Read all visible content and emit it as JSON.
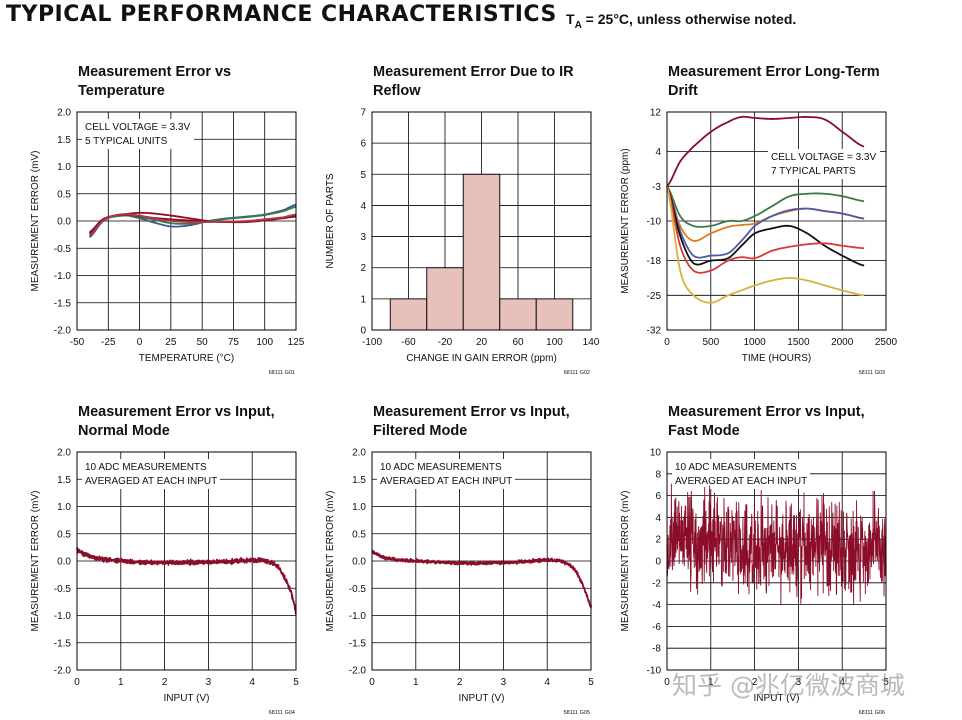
{
  "header": {
    "title": "TYPICAL PERFORMANCE CHARACTERISTICS",
    "cond_prefix": "T",
    "cond_sub": "A",
    "cond_rest": " = 25°C, unless otherwise noted."
  },
  "watermark": "知乎 @兆亿微波商城",
  "colors": {
    "grid": "#000000",
    "bar_fill": "#e7c0bb",
    "curve_main": "#8b0d2a",
    "noise": "#8b0d2a"
  },
  "chart_data": [
    {
      "type": "line",
      "title": "Measurement Error vs Temperature",
      "xlabel": "TEMPERATURE (°C)",
      "ylabel": "MEASUREMENT ERROR (mV)",
      "xlim": [
        -50,
        125
      ],
      "ylim": [
        -2.0,
        2.0
      ],
      "xticks": [
        -50,
        -25,
        0,
        25,
        50,
        75,
        100,
        125
      ],
      "yticks": [
        -2.0,
        -1.5,
        -1.0,
        -0.5,
        0,
        0.5,
        1.0,
        1.5,
        2.0
      ],
      "tick_decimals": 1,
      "grid": true,
      "annotation": [
        "CELL VOLTAGE = 3.3V",
        "5 TYPICAL UNITS"
      ],
      "figure_id": "68111 G01",
      "series": [
        {
          "color": "#8b0d2a",
          "x": [
            -40,
            -30,
            -20,
            -10,
            0,
            10,
            25,
            40,
            55,
            70,
            85,
            100,
            115,
            125
          ],
          "y": [
            -0.25,
            0,
            0.1,
            0.13,
            0.15,
            0.14,
            0.1,
            0.05,
            0,
            -0.02,
            -0.01,
            0.03,
            0.06,
            0.1
          ]
        },
        {
          "color": "#3a5a95",
          "x": [
            -40,
            -30,
            -20,
            -10,
            0,
            10,
            25,
            40,
            55,
            70,
            85,
            100,
            115,
            125
          ],
          "y": [
            -0.3,
            -0.02,
            0.09,
            0.1,
            0.05,
            -0.02,
            -0.1,
            -0.08,
            0,
            0.05,
            0.08,
            0.12,
            0.2,
            0.3
          ]
        },
        {
          "color": "#3a7a4a",
          "x": [
            -40,
            -30,
            -20,
            -10,
            0,
            10,
            25,
            40,
            55,
            70,
            85,
            100,
            115,
            125
          ],
          "y": [
            -0.2,
            0.02,
            0.08,
            0.1,
            0.07,
            0.03,
            -0.04,
            -0.05,
            0,
            0.04,
            0.07,
            0.11,
            0.18,
            0.26
          ]
        },
        {
          "color": "#8b0d2a",
          "x": [
            -40,
            -30,
            -20,
            -10,
            0,
            10,
            25,
            40,
            55,
            70,
            85,
            100,
            115,
            125
          ],
          "y": [
            -0.22,
            0.02,
            0.1,
            0.11,
            0.09,
            0.06,
            0.03,
            0.01,
            -0.01,
            -0.02,
            -0.02,
            0.01,
            0.05,
            0.08
          ]
        },
        {
          "color": "#b23a4a",
          "x": [
            -40,
            -30,
            -20,
            -10,
            0,
            10,
            25,
            40,
            55,
            70,
            85,
            100,
            115,
            125
          ],
          "y": [
            -0.27,
            -0.01,
            0.1,
            0.12,
            0.1,
            0.05,
            0,
            -0.02,
            -0.02,
            -0.01,
            0,
            0.03,
            0.07,
            0.12
          ]
        }
      ]
    },
    {
      "type": "bar",
      "title": "Measurement Error Due to IR Reflow",
      "xlabel": "CHANGE IN GAIN ERROR (ppm)",
      "ylabel": "NUMBER OF PARTS",
      "xlim": [
        -100,
        140
      ],
      "ylim": [
        0,
        7
      ],
      "xticks": [
        -100,
        -60,
        -20,
        20,
        60,
        100,
        140
      ],
      "yticks": [
        0,
        1,
        2,
        3,
        4,
        5,
        6,
        7
      ],
      "tick_decimals": 0,
      "grid": true,
      "figure_id": "68111 G02",
      "bins": [
        {
          "from": -80,
          "to": -40,
          "count": 1
        },
        {
          "from": -40,
          "to": 0,
          "count": 2
        },
        {
          "from": 0,
          "to": 40,
          "count": 5
        },
        {
          "from": 40,
          "to": 80,
          "count": 1
        },
        {
          "from": 80,
          "to": 120,
          "count": 1
        }
      ]
    },
    {
      "type": "line",
      "title": "Measurement Error Long-Term Drift",
      "xlabel": "TIME (HOURS)",
      "ylabel": "MEASUREMENT ERROR (ppm)",
      "xlim": [
        0,
        2500
      ],
      "ylim": [
        -32,
        12
      ],
      "xticks": [
        0,
        500,
        1000,
        1500,
        2000,
        2500
      ],
      "yticks": [
        -32,
        -25,
        -18,
        -10,
        -3,
        4,
        12
      ],
      "tick_decimals": 0,
      "grid": true,
      "annotation": [
        "CELL VOLTAGE = 3.3V",
        "7 TYPICAL PARTS"
      ],
      "figure_id": "58111 G03",
      "series": [
        {
          "color": "#8b0d2a",
          "x": [
            0,
            150,
            300,
            500,
            700,
            850,
            1000,
            1200,
            1400,
            1600,
            1800,
            2000,
            2250
          ],
          "y": [
            -3,
            2,
            5,
            8,
            10,
            11,
            10.8,
            10.6,
            10.8,
            11,
            10.5,
            8,
            5
          ]
        },
        {
          "color": "#3a7a4a",
          "x": [
            0,
            150,
            300,
            500,
            700,
            850,
            1000,
            1200,
            1400,
            1600,
            1800,
            2000,
            2250
          ],
          "y": [
            -3,
            -9,
            -11,
            -11,
            -10,
            -10,
            -9,
            -7,
            -5,
            -4.5,
            -4.5,
            -5,
            -6
          ]
        },
        {
          "color": "#e07b1a",
          "x": [
            0,
            150,
            300,
            500,
            700,
            850,
            1000,
            1200,
            1400,
            1600,
            1800,
            2000,
            2250
          ],
          "y": [
            -3,
            -11,
            -14,
            -12.5,
            -11.2,
            -10.8,
            -10.5,
            -9,
            -8,
            -7.5,
            -8,
            -8.5,
            -9.5
          ]
        },
        {
          "color": "#4a5aa8",
          "x": [
            0,
            150,
            300,
            500,
            700,
            850,
            1000,
            1200,
            1400,
            1600,
            1800,
            2000,
            2250
          ],
          "y": [
            -3,
            -12,
            -17,
            -17,
            -16.5,
            -14,
            -11,
            -9,
            -7.8,
            -7.5,
            -8,
            -8.5,
            -9.5
          ]
        },
        {
          "color": "#111111",
          "x": [
            0,
            150,
            300,
            500,
            700,
            850,
            1000,
            1200,
            1400,
            1600,
            1800,
            2000,
            2250
          ],
          "y": [
            -3,
            -13,
            -18.5,
            -18,
            -17.5,
            -15,
            -12.5,
            -11.5,
            -11,
            -12.5,
            -15,
            -17,
            -19
          ]
        },
        {
          "color": "#d63a3a",
          "x": [
            0,
            150,
            300,
            500,
            700,
            850,
            1000,
            1200,
            1400,
            1600,
            1800,
            2000,
            2250
          ],
          "y": [
            -3,
            -15,
            -20,
            -20,
            -18,
            -17.3,
            -17.5,
            -16,
            -15.2,
            -14.7,
            -14.5,
            -15,
            -15.5
          ]
        },
        {
          "color": "#d8b23a",
          "x": [
            0,
            150,
            300,
            500,
            700,
            850,
            1000,
            1200,
            1400,
            1600,
            1800,
            2000,
            2250
          ],
          "y": [
            -3,
            -20,
            -25,
            -26.5,
            -25,
            -24,
            -23,
            -22,
            -21.5,
            -22,
            -23,
            -24,
            -25
          ]
        }
      ]
    },
    {
      "type": "line",
      "title": "Measurement Error vs Input, Normal Mode",
      "xlabel": "INPUT (V)",
      "ylabel": "MEASUREMENT ERROR (mV)",
      "xlim": [
        0,
        5
      ],
      "ylim": [
        -2.0,
        2.0
      ],
      "xticks": [
        0,
        1,
        2,
        3,
        4,
        5
      ],
      "yticks": [
        -2.0,
        -1.5,
        -1.0,
        -0.5,
        0,
        0.5,
        1.0,
        1.5,
        2.0
      ],
      "tick_decimals": 1,
      "grid": true,
      "annotation": [
        "10 ADC MEASUREMENTS",
        "AVERAGED AT EACH INPUT"
      ],
      "figure_id": "68111 G04",
      "noise_amplitude": 0.035,
      "series": [
        {
          "color": "#8b0d2a",
          "x": [
            0,
            0.1,
            0.3,
            0.6,
            1,
            1.5,
            2,
            2.5,
            3,
            3.5,
            4,
            4.3,
            4.5,
            4.6,
            4.7,
            4.8,
            4.9,
            5
          ],
          "y": [
            0.22,
            0.15,
            0.08,
            0.03,
            0,
            -0.02,
            -0.03,
            -0.03,
            -0.02,
            -0.01,
            0.02,
            0.01,
            -0.05,
            -0.12,
            -0.25,
            -0.4,
            -0.6,
            -0.95
          ]
        }
      ]
    },
    {
      "type": "line",
      "title": "Measurement Error vs Input, Filtered Mode",
      "xlabel": "INPUT (V)",
      "ylabel": "MEASUREMENT ERROR (mV)",
      "xlim": [
        0,
        5
      ],
      "ylim": [
        -2.0,
        2.0
      ],
      "xticks": [
        0,
        1,
        2,
        3,
        4,
        5
      ],
      "yticks": [
        -2.0,
        -1.5,
        -1.0,
        -0.5,
        0,
        0.5,
        1.0,
        1.5,
        2.0
      ],
      "tick_decimals": 1,
      "grid": true,
      "annotation": [
        "10 ADC MEASUREMENTS",
        "AVERAGED AT EACH INPUT"
      ],
      "figure_id": "58111 G05",
      "noise_amplitude": 0.025,
      "series": [
        {
          "color": "#8b0d2a",
          "x": [
            0,
            0.1,
            0.3,
            0.6,
            1,
            1.5,
            2,
            2.5,
            3,
            3.5,
            4,
            4.3,
            4.5,
            4.6,
            4.7,
            4.8,
            4.9,
            5
          ],
          "y": [
            0.18,
            0.12,
            0.06,
            0.02,
            0,
            -0.02,
            -0.04,
            -0.04,
            -0.03,
            -0.01,
            0.02,
            0,
            -0.06,
            -0.13,
            -0.25,
            -0.42,
            -0.62,
            -0.85
          ]
        }
      ]
    },
    {
      "type": "line",
      "title": "Measurement Error vs Input, Fast Mode",
      "xlabel": "INPUT (V)",
      "ylabel": "MEASUREMENT ERROR (mV)",
      "xlim": [
        0,
        5
      ],
      "ylim": [
        -10,
        10
      ],
      "xticks": [
        0,
        1,
        2,
        3,
        4,
        5
      ],
      "yticks": [
        -10,
        -8,
        -6,
        -4,
        -2,
        0,
        2,
        4,
        6,
        8,
        10
      ],
      "tick_decimals": 0,
      "grid": true,
      "annotation": [
        "10 ADC MEASUREMENTS",
        "AVERAGED AT EACH INPUT"
      ],
      "figure_id": "68111 G06",
      "noise_amplitude": 2.6,
      "series": [
        {
          "color": "#8b0d2a",
          "x": [
            0,
            0.5,
            1,
            2,
            3,
            4,
            5
          ],
          "y": [
            2.4,
            2.0,
            1.8,
            1.5,
            1.3,
            1.2,
            1.1
          ]
        }
      ]
    }
  ]
}
